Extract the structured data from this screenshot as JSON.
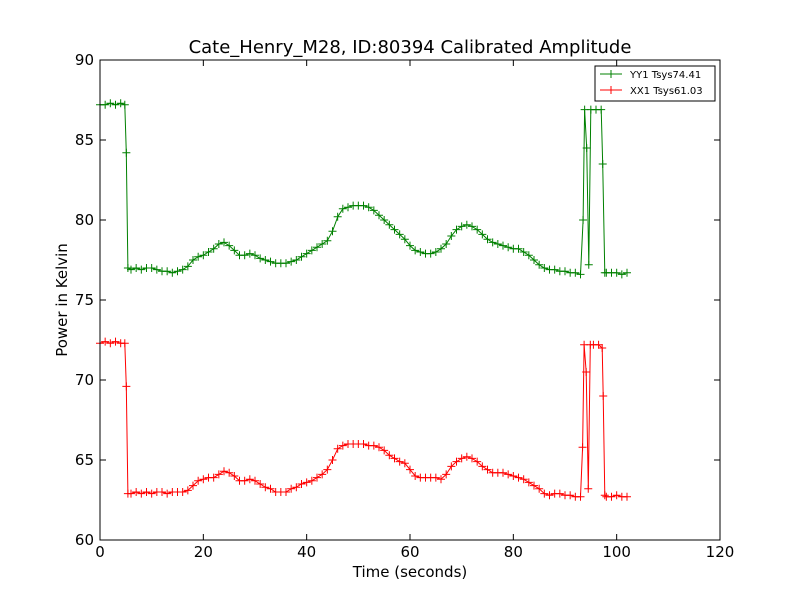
{
  "chart_data": {
    "type": "line",
    "title": "Cate_Henry_M28, ID:80394 Calibrated Amplitude",
    "xlabel": "Time (seconds)",
    "ylabel": "Power in Kelvin",
    "xlim": [
      0,
      120
    ],
    "ylim": [
      60,
      90
    ],
    "xticks": [
      0,
      20,
      40,
      60,
      80,
      100,
      120
    ],
    "yticks": [
      60,
      65,
      70,
      75,
      80,
      85,
      90
    ],
    "grid": false,
    "legend_position": "top-right",
    "series": [
      {
        "name": "YY1 Tsys74.41",
        "color": "#008000",
        "marker": "+",
        "points": [
          [
            0,
            87.2
          ],
          [
            1,
            87.2
          ],
          [
            2,
            87.3
          ],
          [
            3,
            87.2
          ],
          [
            4,
            87.3
          ],
          [
            4.8,
            87.2
          ],
          [
            5.1,
            84.2
          ],
          [
            5.4,
            77.0
          ],
          [
            6,
            76.9
          ],
          [
            7,
            77.0
          ],
          [
            8,
            76.9
          ],
          [
            9,
            77.0
          ],
          [
            10,
            77.0
          ],
          [
            11,
            76.9
          ],
          [
            12,
            76.8
          ],
          [
            13,
            76.8
          ],
          [
            14,
            76.7
          ],
          [
            15,
            76.8
          ],
          [
            16,
            76.9
          ],
          [
            17,
            77.1
          ],
          [
            18,
            77.5
          ],
          [
            19,
            77.7
          ],
          [
            20,
            77.8
          ],
          [
            21,
            78.0
          ],
          [
            22,
            78.2
          ],
          [
            23,
            78.5
          ],
          [
            24,
            78.6
          ],
          [
            25,
            78.4
          ],
          [
            26,
            78.1
          ],
          [
            27,
            77.8
          ],
          [
            28,
            77.8
          ],
          [
            29,
            77.9
          ],
          [
            30,
            77.8
          ],
          [
            31,
            77.6
          ],
          [
            32,
            77.5
          ],
          [
            33,
            77.4
          ],
          [
            34,
            77.3
          ],
          [
            35,
            77.3
          ],
          [
            36,
            77.3
          ],
          [
            37,
            77.4
          ],
          [
            38,
            77.5
          ],
          [
            39,
            77.7
          ],
          [
            40,
            77.9
          ],
          [
            41,
            78.1
          ],
          [
            42,
            78.3
          ],
          [
            43,
            78.5
          ],
          [
            44,
            78.7
          ],
          [
            45,
            79.3
          ],
          [
            46,
            80.2
          ],
          [
            47,
            80.7
          ],
          [
            48,
            80.8
          ],
          [
            49,
            80.9
          ],
          [
            50,
            80.9
          ],
          [
            51,
            80.9
          ],
          [
            52,
            80.8
          ],
          [
            53,
            80.6
          ],
          [
            54,
            80.3
          ],
          [
            55,
            80.0
          ],
          [
            56,
            79.7
          ],
          [
            57,
            79.4
          ],
          [
            58,
            79.1
          ],
          [
            59,
            78.8
          ],
          [
            60,
            78.4
          ],
          [
            61,
            78.1
          ],
          [
            62,
            78.0
          ],
          [
            63,
            77.9
          ],
          [
            64,
            77.9
          ],
          [
            65,
            78.0
          ],
          [
            66,
            78.2
          ],
          [
            67,
            78.5
          ],
          [
            68,
            79.0
          ],
          [
            69,
            79.4
          ],
          [
            70,
            79.6
          ],
          [
            71,
            79.7
          ],
          [
            72,
            79.6
          ],
          [
            73,
            79.4
          ],
          [
            74,
            79.1
          ],
          [
            75,
            78.8
          ],
          [
            76,
            78.6
          ],
          [
            77,
            78.5
          ],
          [
            78,
            78.4
          ],
          [
            79,
            78.3
          ],
          [
            80,
            78.2
          ],
          [
            81,
            78.2
          ],
          [
            82,
            78.0
          ],
          [
            83,
            77.8
          ],
          [
            84,
            77.5
          ],
          [
            85,
            77.2
          ],
          [
            86,
            77.0
          ],
          [
            87,
            76.9
          ],
          [
            88,
            76.9
          ],
          [
            89,
            76.8
          ],
          [
            90,
            76.8
          ],
          [
            91,
            76.7
          ],
          [
            92,
            76.7
          ],
          [
            93,
            76.6
          ],
          [
            93.5,
            80.0
          ],
          [
            93.8,
            86.9
          ],
          [
            94.2,
            84.5
          ],
          [
            94.6,
            77.2
          ],
          [
            95,
            86.9
          ],
          [
            96,
            86.9
          ],
          [
            97,
            86.9
          ],
          [
            97.3,
            83.5
          ],
          [
            97.7,
            76.7
          ],
          [
            98,
            76.7
          ],
          [
            99,
            76.7
          ],
          [
            100,
            76.7
          ],
          [
            101,
            76.6
          ],
          [
            102,
            76.7
          ]
        ]
      },
      {
        "name": "XX1 Tsys61.03",
        "color": "#ff0000",
        "marker": "+",
        "points": [
          [
            0,
            72.3
          ],
          [
            1,
            72.4
          ],
          [
            2,
            72.3
          ],
          [
            3,
            72.4
          ],
          [
            4,
            72.3
          ],
          [
            4.8,
            72.3
          ],
          [
            5.1,
            69.6
          ],
          [
            5.4,
            62.9
          ],
          [
            6,
            62.9
          ],
          [
            7,
            63.0
          ],
          [
            8,
            62.9
          ],
          [
            9,
            63.0
          ],
          [
            10,
            62.9
          ],
          [
            11,
            63.0
          ],
          [
            12,
            63.0
          ],
          [
            13,
            62.9
          ],
          [
            14,
            63.0
          ],
          [
            15,
            63.0
          ],
          [
            16,
            63.0
          ],
          [
            17,
            63.1
          ],
          [
            18,
            63.4
          ],
          [
            19,
            63.7
          ],
          [
            20,
            63.8
          ],
          [
            21,
            63.9
          ],
          [
            22,
            63.9
          ],
          [
            23,
            64.1
          ],
          [
            24,
            64.3
          ],
          [
            25,
            64.2
          ],
          [
            26,
            64.0
          ],
          [
            27,
            63.7
          ],
          [
            28,
            63.7
          ],
          [
            29,
            63.8
          ],
          [
            30,
            63.7
          ],
          [
            31,
            63.5
          ],
          [
            32,
            63.3
          ],
          [
            33,
            63.2
          ],
          [
            34,
            63.0
          ],
          [
            35,
            63.0
          ],
          [
            36,
            63.0
          ],
          [
            37,
            63.2
          ],
          [
            38,
            63.3
          ],
          [
            39,
            63.5
          ],
          [
            40,
            63.6
          ],
          [
            41,
            63.7
          ],
          [
            42,
            63.9
          ],
          [
            43,
            64.1
          ],
          [
            44,
            64.4
          ],
          [
            45,
            65.0
          ],
          [
            46,
            65.7
          ],
          [
            47,
            65.9
          ],
          [
            48,
            66.0
          ],
          [
            49,
            66.0
          ],
          [
            50,
            66.0
          ],
          [
            51,
            66.0
          ],
          [
            52,
            65.9
          ],
          [
            53,
            65.9
          ],
          [
            54,
            65.8
          ],
          [
            55,
            65.6
          ],
          [
            56,
            65.3
          ],
          [
            57,
            65.1
          ],
          [
            58,
            64.9
          ],
          [
            59,
            64.8
          ],
          [
            60,
            64.4
          ],
          [
            61,
            64.0
          ],
          [
            62,
            63.9
          ],
          [
            63,
            63.9
          ],
          [
            64,
            63.9
          ],
          [
            65,
            63.9
          ],
          [
            66,
            63.8
          ],
          [
            67,
            64.1
          ],
          [
            68,
            64.6
          ],
          [
            69,
            64.9
          ],
          [
            70,
            65.1
          ],
          [
            71,
            65.2
          ],
          [
            72,
            65.1
          ],
          [
            73,
            64.9
          ],
          [
            74,
            64.6
          ],
          [
            75,
            64.4
          ],
          [
            76,
            64.2
          ],
          [
            77,
            64.2
          ],
          [
            78,
            64.2
          ],
          [
            79,
            64.1
          ],
          [
            80,
            64.0
          ],
          [
            81,
            63.9
          ],
          [
            82,
            63.8
          ],
          [
            83,
            63.6
          ],
          [
            84,
            63.4
          ],
          [
            85,
            63.2
          ],
          [
            86,
            62.9
          ],
          [
            87,
            62.8
          ],
          [
            88,
            62.9
          ],
          [
            89,
            62.9
          ],
          [
            90,
            62.8
          ],
          [
            91,
            62.8
          ],
          [
            92,
            62.7
          ],
          [
            93,
            62.7
          ],
          [
            93.4,
            65.8
          ],
          [
            93.7,
            72.2
          ],
          [
            94.1,
            70.5
          ],
          [
            94.5,
            63.2
          ],
          [
            94.9,
            72.2
          ],
          [
            95.5,
            72.2
          ],
          [
            96.5,
            72.2
          ],
          [
            97.2,
            72.0
          ],
          [
            97.4,
            69.0
          ],
          [
            97.7,
            62.8
          ],
          [
            98,
            62.7
          ],
          [
            99,
            62.7
          ],
          [
            100,
            62.8
          ],
          [
            101,
            62.7
          ],
          [
            102,
            62.7
          ]
        ]
      }
    ]
  }
}
